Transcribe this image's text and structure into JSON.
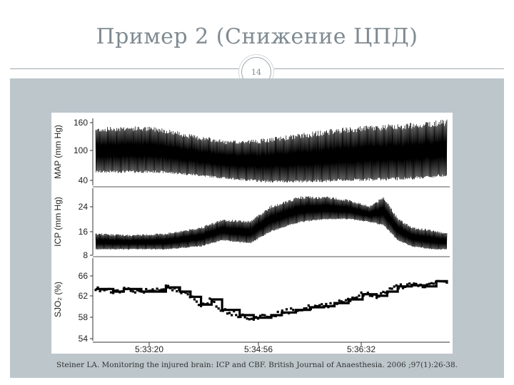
{
  "slide": {
    "title": "Пример 2 (Снижение ЦПД)",
    "page_number": "14",
    "citation": "Steiner LA. Monitoring the injured brain: ICP and CBF. British Journal of Anaesthesia. 2006 ;97(1):26-38."
  },
  "colors": {
    "background_band": "#bcc6cb",
    "title": "#7f8a91",
    "trace": "#000000"
  },
  "chart_data": {
    "type": "line",
    "x_ticks": [
      "5:33:20",
      "5:34:56",
      "5:36:32"
    ],
    "panels": [
      {
        "name": "map",
        "ylabel": "MAP (mm Hg)",
        "yticks": [
          160,
          100,
          40
        ],
        "ylim": [
          30,
          170
        ],
        "band": {
          "x": [
            0.0,
            0.08,
            0.18,
            0.28,
            0.38,
            0.48,
            0.58,
            0.68,
            0.78,
            0.88,
            0.96,
            1.0
          ],
          "upper": [
            145,
            148,
            146,
            130,
            118,
            122,
            132,
            142,
            148,
            152,
            158,
            160
          ],
          "lower": [
            58,
            58,
            58,
            52,
            44,
            38,
            38,
            40,
            42,
            44,
            48,
            52
          ]
        }
      },
      {
        "name": "icp",
        "ylabel": "ICP (mm Hg)",
        "yticks": [
          24,
          16,
          8
        ],
        "ylim": [
          6,
          30
        ],
        "band": {
          "x": [
            0.0,
            0.1,
            0.2,
            0.3,
            0.36,
            0.44,
            0.5,
            0.58,
            0.66,
            0.72,
            0.78,
            0.82,
            0.86,
            0.9,
            0.96,
            1.0
          ],
          "upper": [
            15,
            14.5,
            15,
            17,
            19.5,
            19,
            24,
            27,
            27,
            26,
            24,
            27,
            20,
            17,
            16,
            15
          ],
          "lower": [
            10,
            10,
            10,
            11,
            13,
            12,
            16,
            19,
            20,
            20,
            19,
            18,
            13,
            11,
            10,
            10
          ]
        }
      },
      {
        "name": "sjo2",
        "ylabel": "SJO₂ (%)",
        "yticks": [
          66,
          62,
          58,
          54
        ],
        "ylim": [
          53,
          67
        ],
        "step": {
          "x": [
            0.0,
            0.05,
            0.08,
            0.13,
            0.2,
            0.24,
            0.27,
            0.3,
            0.33,
            0.36,
            0.41,
            0.45,
            0.5,
            0.53,
            0.57,
            0.61,
            0.65,
            0.68,
            0.72,
            0.76,
            0.8,
            0.83,
            0.86,
            0.9,
            0.94,
            0.97,
            1.0
          ],
          "y": [
            63.5,
            63,
            63.5,
            63,
            63.8,
            63,
            62,
            60.5,
            61.5,
            59.5,
            58.5,
            58,
            58.5,
            59,
            59.5,
            60,
            60.2,
            60.8,
            61.5,
            62.5,
            62.2,
            63,
            64,
            64.2,
            64,
            65,
            64.5
          ]
        }
      }
    ]
  }
}
